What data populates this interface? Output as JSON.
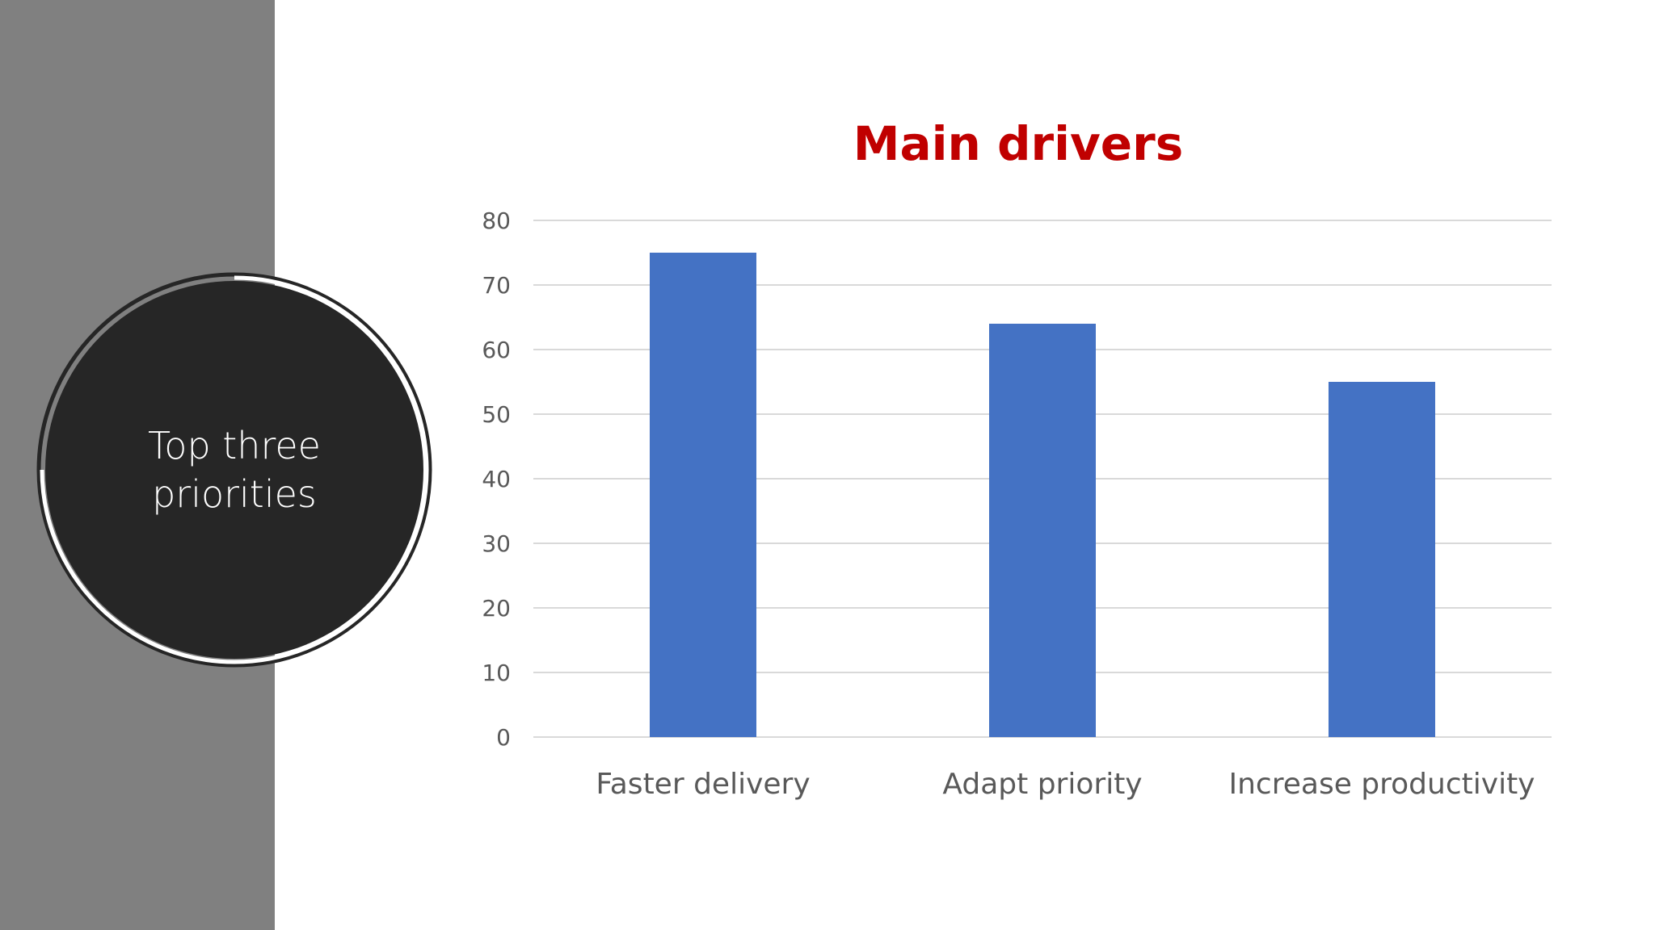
{
  "side": {
    "label": "Top three\npriorities"
  },
  "chart_data": {
    "type": "bar",
    "title": "Main drivers",
    "categories": [
      "Faster delivery",
      "Adapt priority",
      "Increase productivity"
    ],
    "values": [
      75,
      64,
      55
    ],
    "ylim": [
      0,
      80
    ],
    "yticks": [
      0,
      10,
      20,
      30,
      40,
      50,
      60,
      70,
      80
    ],
    "xlabel": "",
    "ylabel": "",
    "grid": true,
    "legend": "none",
    "bar_color": "#4472c4",
    "title_color": "#c00000"
  }
}
